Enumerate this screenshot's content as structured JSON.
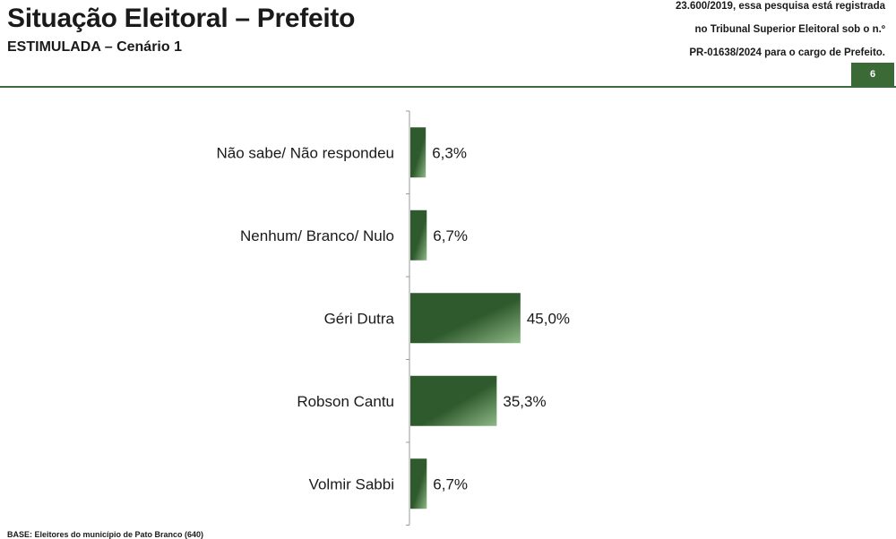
{
  "header": {
    "title": "Situação Eleitoral – Prefeito",
    "subtitle": "ESTIMULADA – Cenário 1",
    "note_lines": [
      "23.600/2019, essa pesquisa está registrada",
      "no Tribunal Superior Eleitoral sob o n.º",
      "PR-01638/2024 para o cargo de Prefeito."
    ],
    "page_number": "6"
  },
  "footer": {
    "base_text": "BASE: Eleitores do município de Pato Branco (640)"
  },
  "colors": {
    "bar_dark": "#2f5a2d",
    "bar_light": "#8fb886",
    "rule": "#3d6b3a",
    "badge": "#3b6a37"
  },
  "chart_data": {
    "type": "bar",
    "orientation": "horizontal",
    "categories": [
      "Não sabe/ Não respondeu",
      "Nenhum/ Branco/ Nulo",
      "Géri Dutra",
      "Robson Cantu",
      "Volmir Sabbi"
    ],
    "values": [
      6.3,
      6.7,
      45.0,
      35.3,
      6.7
    ],
    "value_labels": [
      "6,3%",
      "6,7%",
      "45,0%",
      "35,3%",
      "6,7%"
    ],
    "unit": "%",
    "xlim": [
      0,
      100
    ],
    "grid": false,
    "legend": false
  }
}
